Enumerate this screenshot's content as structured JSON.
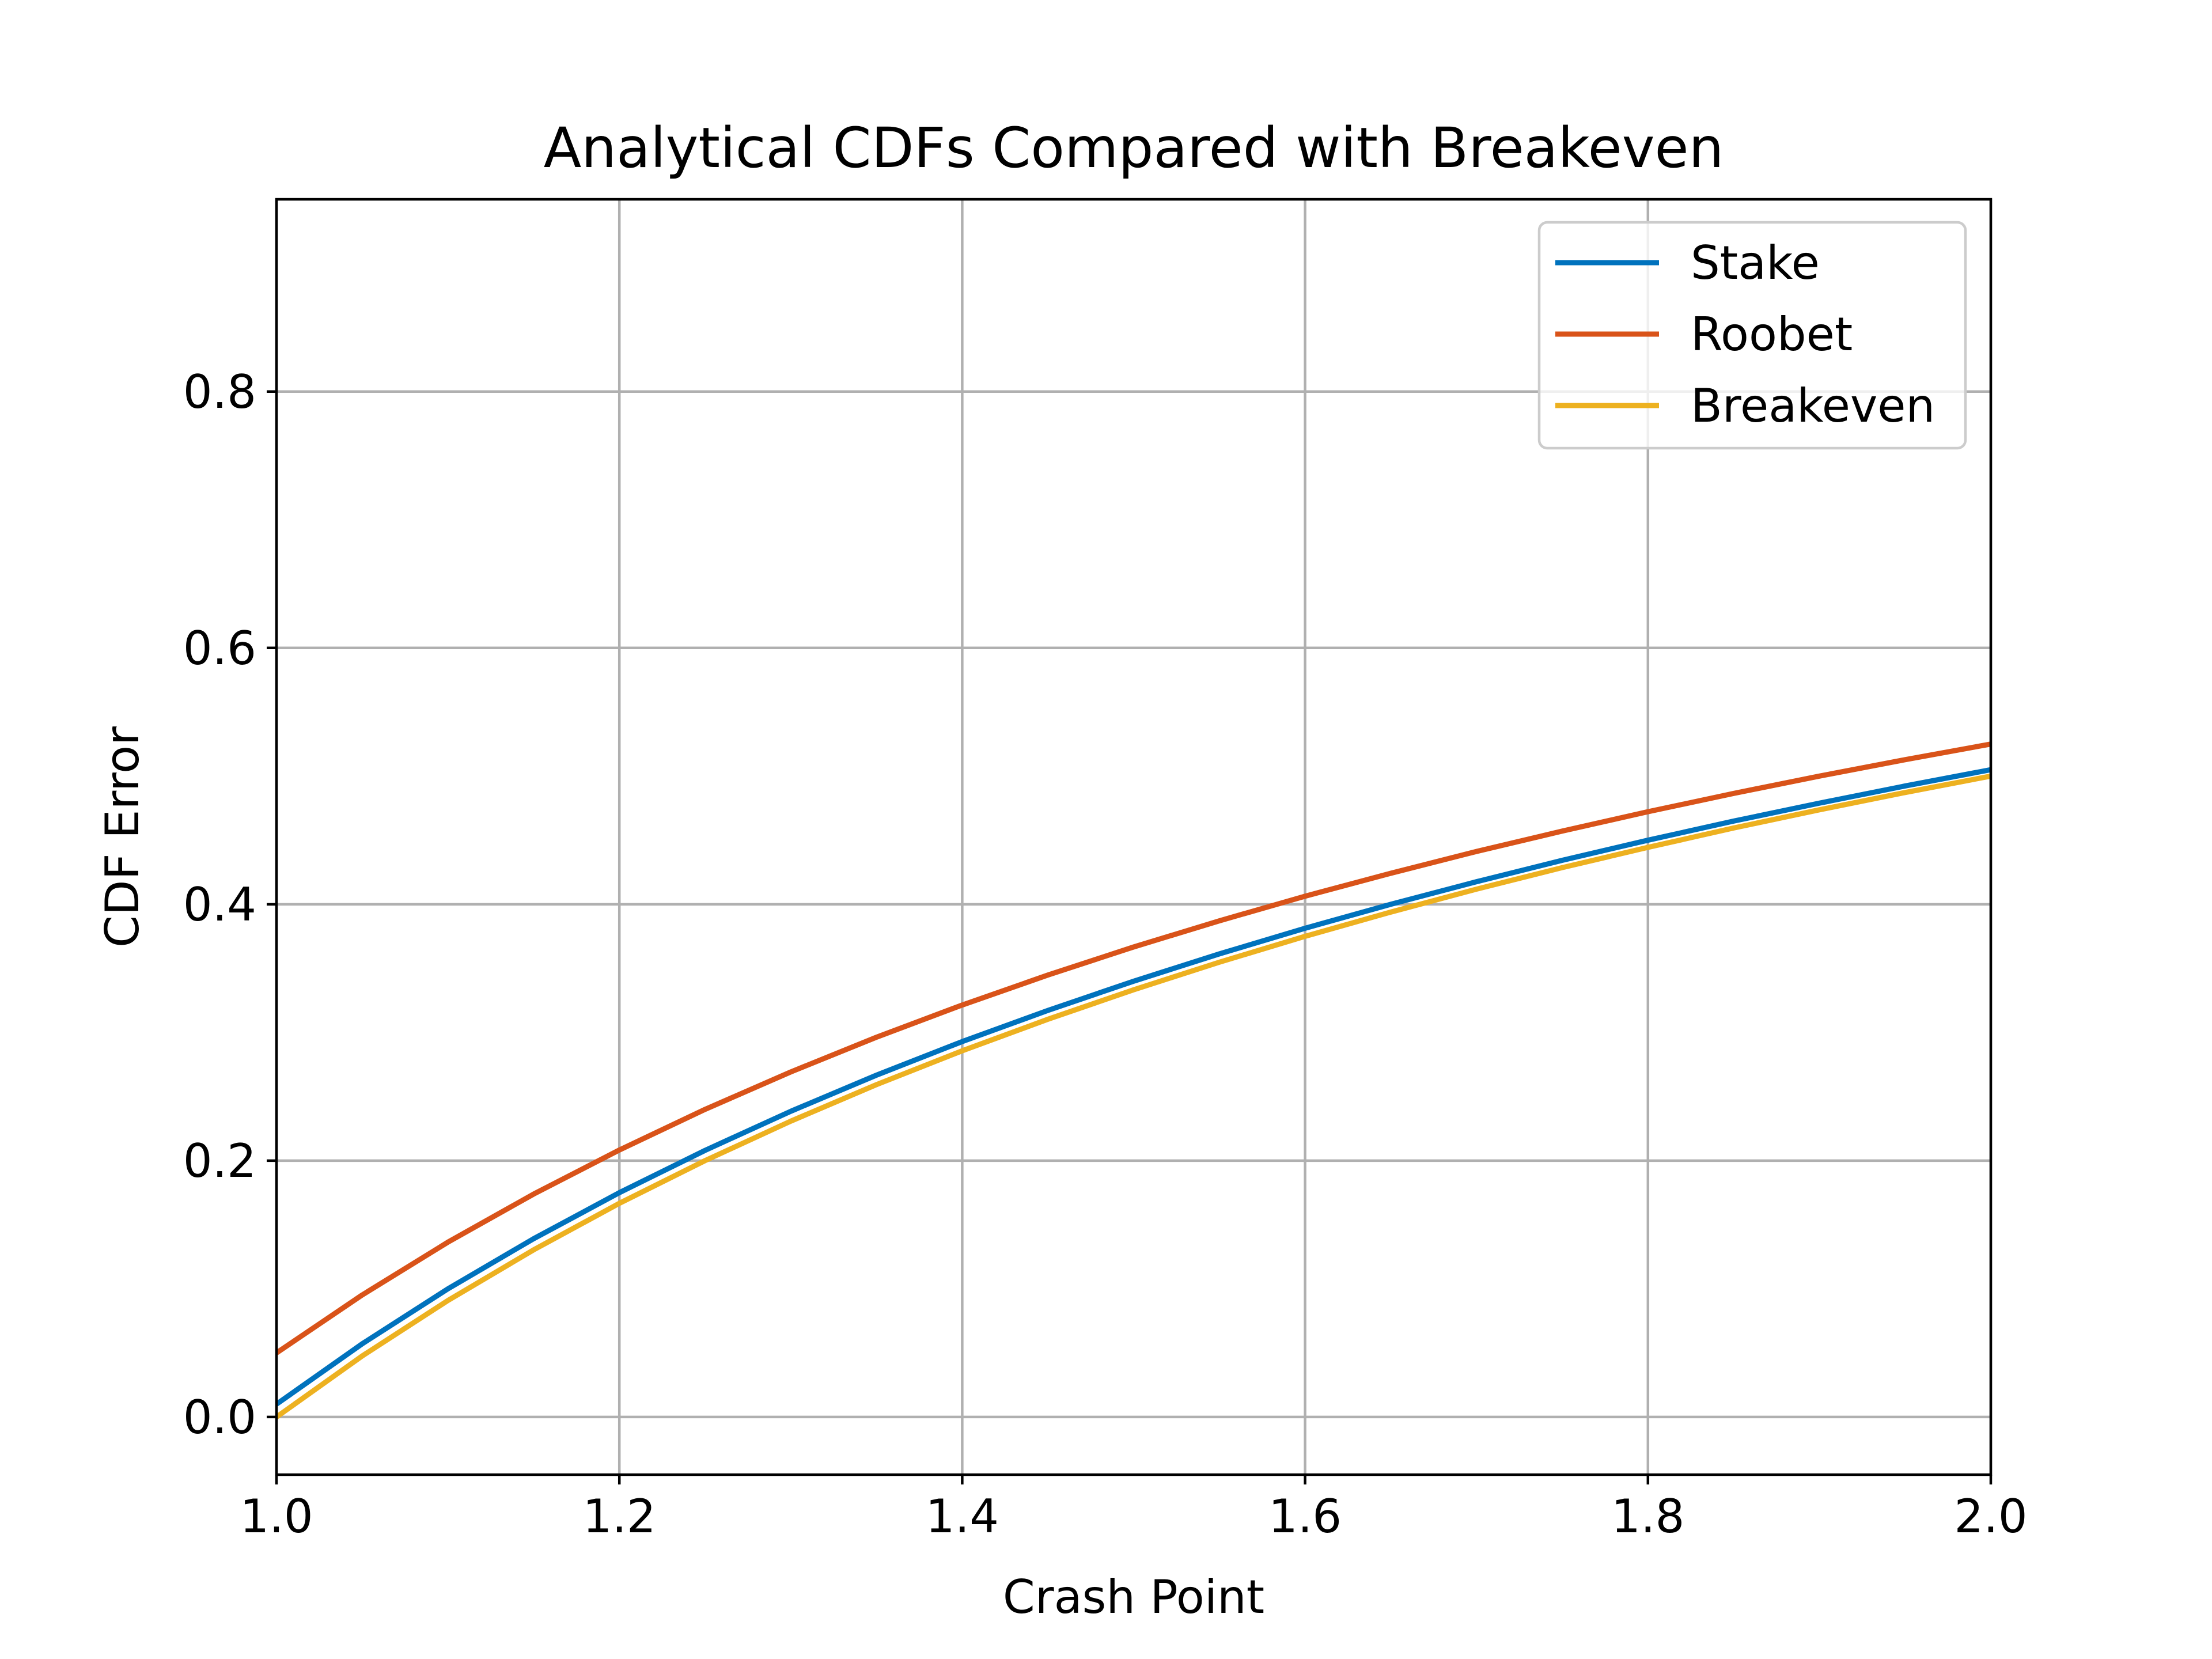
{
  "chart_data": {
    "type": "line",
    "title": "Analytical CDFs Compared with Breakeven",
    "xlabel": "Crash Point",
    "ylabel": "CDF Error",
    "xlim": [
      1.0,
      2.0
    ],
    "ylim": [
      -0.045,
      0.95
    ],
    "xticks": [
      1.0,
      1.2,
      1.4,
      1.6,
      1.8,
      2.0
    ],
    "xtick_labels": [
      "1.0",
      "1.2",
      "1.4",
      "1.6",
      "1.8",
      "2.0"
    ],
    "yticks": [
      0.0,
      0.2,
      0.4,
      0.6,
      0.8
    ],
    "ytick_labels": [
      "0.0",
      "0.2",
      "0.4",
      "0.6",
      "0.8"
    ],
    "grid": true,
    "legend_position": "upper-right",
    "x": [
      1.0,
      1.05,
      1.1,
      1.15,
      1.2,
      1.25,
      1.3,
      1.35,
      1.4,
      1.45,
      1.5,
      1.55,
      1.6,
      1.65,
      1.7,
      1.75,
      1.8,
      1.85,
      1.9,
      1.95,
      2.0
    ],
    "series": [
      {
        "name": "Stake",
        "color": "#0072BD",
        "values": [
          0.01,
          0.0571,
          0.1,
          0.1391,
          0.175,
          0.208,
          0.2385,
          0.2667,
          0.2929,
          0.3172,
          0.34,
          0.3613,
          0.3813,
          0.4,
          0.4176,
          0.4343,
          0.45,
          0.4649,
          0.4789,
          0.4923,
          0.505
        ]
      },
      {
        "name": "Roobet",
        "color": "#D95319",
        "values": [
          0.05,
          0.0952,
          0.1364,
          0.1739,
          0.2083,
          0.24,
          0.2692,
          0.2963,
          0.3214,
          0.3448,
          0.3667,
          0.3871,
          0.4063,
          0.4242,
          0.4412,
          0.4571,
          0.4722,
          0.4865,
          0.5,
          0.5128,
          0.525
        ]
      },
      {
        "name": "Breakeven",
        "color": "#EDB120",
        "values": [
          0.0,
          0.0476,
          0.0909,
          0.1304,
          0.1667,
          0.2,
          0.2308,
          0.2593,
          0.2857,
          0.3103,
          0.3333,
          0.3548,
          0.375,
          0.3939,
          0.4118,
          0.4286,
          0.4444,
          0.4595,
          0.4737,
          0.4872,
          0.5
        ]
      }
    ]
  }
}
